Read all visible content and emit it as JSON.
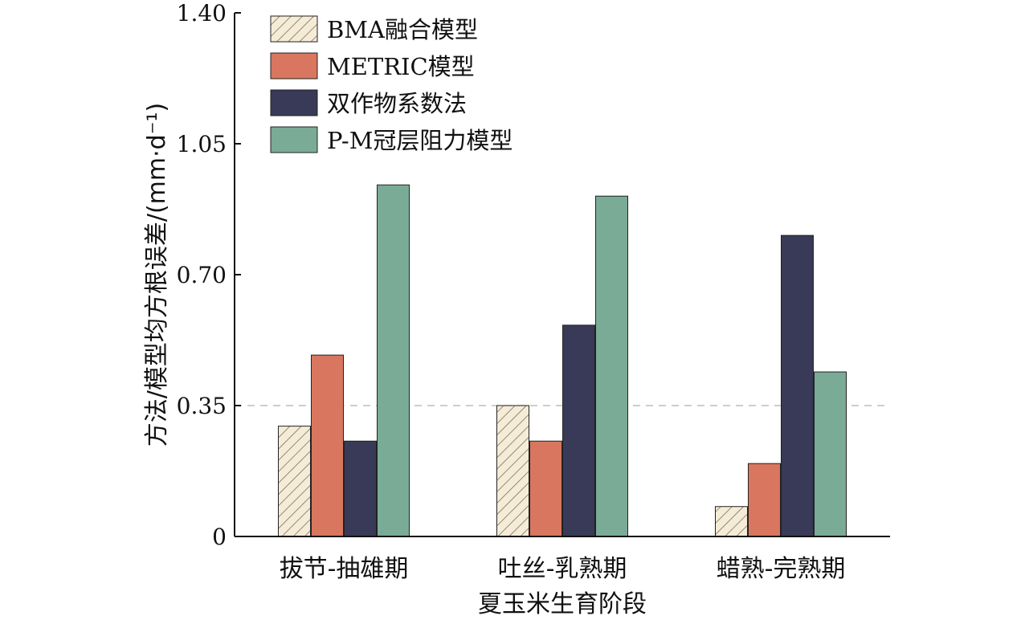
{
  "chart_data": {
    "type": "bar",
    "xlabel": "夏玉米生育阶段",
    "ylabel": "方法/模型均方根误差/(mm·d⁻¹)",
    "categories": [
      "拔节-抽雄期",
      "吐丝-乳熟期",
      "蜡熟-完熟期"
    ],
    "ylim": [
      0,
      1.4
    ],
    "yticks": [
      0,
      0.35,
      0.7,
      1.05,
      1.4
    ],
    "ytick_labels": [
      "0",
      "0.35",
      "0.70",
      "1.05",
      "1.40"
    ],
    "reference_line": 0.35,
    "legend_position": "top-left",
    "series": [
      {
        "name": "BMA融合模型",
        "values": [
          0.295,
          0.35,
          0.08
        ],
        "color": "#f5ecd7",
        "pattern": "hatch"
      },
      {
        "name": "METRIC模型",
        "values": [
          0.485,
          0.255,
          0.195
        ],
        "color": "#d9765f"
      },
      {
        "name": "双作物系数法",
        "values": [
          0.255,
          0.565,
          0.805
        ],
        "color": "#393a57"
      },
      {
        "name": "P-M冠层阻力模型",
        "values": [
          0.94,
          0.91,
          0.44
        ],
        "color": "#7aab96"
      }
    ]
  }
}
